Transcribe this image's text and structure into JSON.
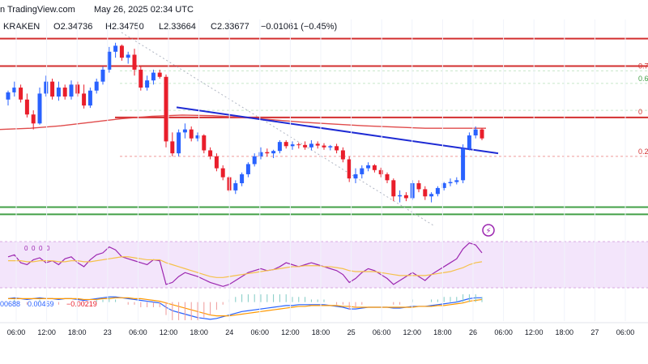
{
  "header": {
    "source": "n TradingView.com",
    "date": "May 26, 2025 02:34 UTC"
  },
  "ohlc": {
    "exchange": "KRAKEN",
    "open_label": "O",
    "open": "2.34736",
    "high_label": "H",
    "high": "2.34750",
    "low_label": "L",
    "low": "2.33664",
    "close_label": "C",
    "close": "2.33677",
    "change": "−0.01061 (−0.45%)"
  },
  "fib_labels": [
    "0.7",
    "0.6",
    "0",
    "0.2"
  ],
  "rsi_values_text": [
    "0",
    "0",
    "0",
    "0"
  ],
  "macd_values_text": [
    "00688",
    "0.00469",
    "−0.00219"
  ],
  "colors": {
    "up": "#2962ff",
    "down": "#e91e2b",
    "resistance": "#d32f2f",
    "support": "#43a047",
    "trend": "#1e2bd4",
    "ma": "#e04b4b",
    "rsi": "#9c27b0",
    "rsi_ma": "#f5c14a",
    "rsi_band": "#f3e5fb",
    "macd": "#2962ff",
    "signal": "#ff9800"
  },
  "chart_data": [
    {
      "type": "candlestick",
      "title": "",
      "x_ticks": [
        "06:00",
        "12:00",
        "18:00",
        "23",
        "06:00",
        "12:00",
        "18:00",
        "24",
        "06:00",
        "12:00",
        "18:00",
        "25",
        "06:00",
        "12:00",
        "18:00",
        "26",
        "06:00",
        "12:00",
        "18:00",
        "27",
        "06:00"
      ],
      "candles": [
        [
          2.28,
          2.295,
          2.27,
          2.292
        ],
        [
          2.292,
          2.31,
          2.285,
          2.3
        ],
        [
          2.3,
          2.305,
          2.275,
          2.28
        ],
        [
          2.28,
          2.29,
          2.25,
          2.255
        ],
        [
          2.255,
          2.262,
          2.23,
          2.24
        ],
        [
          2.24,
          2.3,
          2.238,
          2.29
        ],
        [
          2.29,
          2.32,
          2.285,
          2.31
        ],
        [
          2.31,
          2.315,
          2.28,
          2.285
        ],
        [
          2.285,
          2.31,
          2.278,
          2.3
        ],
        [
          2.3,
          2.305,
          2.28,
          2.285
        ],
        [
          2.285,
          2.312,
          2.28,
          2.305
        ],
        [
          2.305,
          2.31,
          2.285,
          2.29
        ],
        [
          2.29,
          2.305,
          2.265,
          2.27
        ],
        [
          2.27,
          2.3,
          2.266,
          2.295
        ],
        [
          2.295,
          2.315,
          2.29,
          2.31
        ],
        [
          2.31,
          2.335,
          2.305,
          2.33
        ],
        [
          2.33,
          2.368,
          2.325,
          2.36
        ],
        [
          2.36,
          2.375,
          2.35,
          2.37
        ],
        [
          2.37,
          2.372,
          2.345,
          2.35
        ],
        [
          2.35,
          2.36,
          2.34,
          2.355
        ],
        [
          2.355,
          2.365,
          2.32,
          2.33
        ],
        [
          2.33,
          2.335,
          2.295,
          2.3
        ],
        [
          2.3,
          2.32,
          2.295,
          2.312
        ],
        [
          2.312,
          2.33,
          2.305,
          2.325
        ],
        [
          2.325,
          2.33,
          2.315,
          2.318
        ],
        [
          2.318,
          2.322,
          2.2,
          2.21
        ],
        [
          2.21,
          2.225,
          2.185,
          2.19
        ],
        [
          2.19,
          2.23,
          2.185,
          2.225
        ],
        [
          2.225,
          2.24,
          2.215,
          2.23
        ],
        [
          2.23,
          2.235,
          2.21,
          2.215
        ],
        [
          2.215,
          2.225,
          2.21,
          2.22
        ],
        [
          2.22,
          2.222,
          2.19,
          2.195
        ],
        [
          2.195,
          2.2,
          2.18,
          2.185
        ],
        [
          2.185,
          2.19,
          2.16,
          2.165
        ],
        [
          2.165,
          2.17,
          2.145,
          2.15
        ],
        [
          2.15,
          2.152,
          2.125,
          2.128
        ],
        [
          2.128,
          2.145,
          2.122,
          2.14
        ],
        [
          2.14,
          2.158,
          2.135,
          2.155
        ],
        [
          2.155,
          2.175,
          2.15,
          2.172
        ],
        [
          2.172,
          2.19,
          2.168,
          2.185
        ],
        [
          2.185,
          2.2,
          2.18,
          2.192
        ],
        [
          2.192,
          2.198,
          2.185,
          2.19
        ],
        [
          2.19,
          2.196,
          2.182,
          2.194
        ],
        [
          2.194,
          2.212,
          2.19,
          2.209
        ],
        [
          2.209,
          2.212,
          2.198,
          2.202
        ],
        [
          2.202,
          2.21,
          2.196,
          2.205
        ],
        [
          2.205,
          2.208,
          2.198,
          2.204
        ],
        [
          2.204,
          2.21,
          2.196,
          2.2
        ],
        [
          2.2,
          2.212,
          2.195,
          2.206
        ],
        [
          2.206,
          2.21,
          2.198,
          2.203
        ],
        [
          2.203,
          2.207,
          2.196,
          2.2
        ],
        [
          2.2,
          2.204,
          2.195,
          2.202
        ],
        [
          2.202,
          2.206,
          2.19,
          2.195
        ],
        [
          2.195,
          2.2,
          2.175,
          2.18
        ],
        [
          2.18,
          2.185,
          2.142,
          2.148
        ],
        [
          2.148,
          2.165,
          2.14,
          2.155
        ],
        [
          2.155,
          2.17,
          2.148,
          2.165
        ],
        [
          2.165,
          2.175,
          2.16,
          2.17
        ],
        [
          2.17,
          2.172,
          2.158,
          2.162
        ],
        [
          2.162,
          2.166,
          2.15,
          2.155
        ],
        [
          2.155,
          2.158,
          2.14,
          2.145
        ],
        [
          2.145,
          2.148,
          2.11,
          2.118
        ],
        [
          2.118,
          2.128,
          2.108,
          2.12
        ],
        [
          2.12,
          2.125,
          2.11,
          2.115
        ],
        [
          2.115,
          2.145,
          2.112,
          2.14
        ],
        [
          2.14,
          2.145,
          2.125,
          2.13
        ],
        [
          2.13,
          2.135,
          2.112,
          2.118
        ],
        [
          2.118,
          2.125,
          2.108,
          2.122
        ],
        [
          2.122,
          2.135,
          2.118,
          2.132
        ],
        [
          2.132,
          2.142,
          2.128,
          2.14
        ],
        [
          2.14,
          2.148,
          2.135,
          2.142
        ],
        [
          2.142,
          2.15,
          2.138,
          2.145
        ],
        [
          2.145,
          2.205,
          2.14,
          2.198
        ],
        [
          2.198,
          2.225,
          2.195,
          2.22
        ],
        [
          2.22,
          2.235,
          2.215,
          2.23
        ],
        [
          2.23,
          2.232,
          2.212,
          2.215
        ]
      ],
      "moving_average": [
        2.23,
        2.232,
        2.236,
        2.242,
        2.248,
        2.252,
        2.254,
        2.253,
        2.25,
        2.246,
        2.242,
        2.239,
        2.236,
        2.234,
        2.232,
        2.232,
        2.232
      ],
      "resistance_lines": [
        2.382,
        2.336,
        2.25
      ],
      "support_lines": [
        2.1,
        2.088
      ],
      "fib_levels": [
        2.328,
        2.307,
        2.262,
        2.185
      ],
      "trendline": [
        [
          2.267,
          2.19
        ]
      ],
      "ylim": [
        2.06,
        2.395
      ]
    },
    {
      "type": "line",
      "title": "",
      "series": [
        {
          "values": [
            58,
            60,
            52,
            50,
            55,
            57,
            52,
            54,
            50,
            56,
            58,
            52,
            48,
            55,
            60,
            62,
            68,
            65,
            58,
            56,
            54,
            52,
            50,
            55,
            54,
            30,
            32,
            38,
            42,
            40,
            38,
            35,
            32,
            30,
            28,
            30,
            34,
            38,
            42,
            44,
            46,
            44,
            45,
            48,
            52,
            50,
            48,
            50,
            52,
            50,
            48,
            46,
            44,
            40,
            32,
            36,
            42,
            46,
            44,
            40,
            36,
            30,
            34,
            38,
            42,
            38,
            34,
            40,
            44,
            48,
            52,
            56,
            66,
            72,
            70,
            62
          ]
        },
        {
          "values": [
            54,
            54,
            54,
            53,
            53,
            54,
            54,
            54,
            53,
            53,
            54,
            54,
            53,
            53,
            54,
            55,
            56,
            57,
            58,
            58,
            57,
            56,
            55,
            55,
            55,
            52,
            50,
            48,
            46,
            44,
            42,
            40,
            38,
            37,
            37,
            38,
            39,
            40,
            41,
            42,
            43,
            44,
            45,
            46,
            47,
            48,
            48,
            49,
            49,
            49,
            48,
            48,
            47,
            46,
            44,
            43,
            43,
            43,
            43,
            42,
            41,
            40,
            39,
            39,
            39,
            39,
            39,
            40,
            41,
            42,
            43,
            45,
            47,
            50,
            52,
            53
          ]
        }
      ],
      "ylim": [
        20,
        80
      ]
    },
    {
      "type": "line",
      "title": "",
      "series": [
        {
          "values": [
            0.004,
            0.005,
            0.004,
            0.003,
            0.004,
            0.005,
            0.004,
            0.004,
            0.003,
            0.004,
            0.004,
            0.003,
            0.002,
            0.003,
            0.004,
            0.005,
            0.006,
            0.006,
            0.005,
            0.004,
            0.003,
            0.002,
            0.001,
            0.0,
            -0.001,
            -0.006,
            -0.01,
            -0.012,
            -0.014,
            -0.016,
            -0.018,
            -0.019,
            -0.02,
            -0.019,
            -0.017,
            -0.015,
            -0.013,
            -0.011,
            -0.01,
            -0.009,
            -0.008,
            -0.007,
            -0.006,
            -0.005,
            -0.004,
            -0.004,
            -0.003,
            -0.003,
            -0.003,
            -0.003,
            -0.003,
            -0.004,
            -0.005,
            -0.006,
            -0.008,
            -0.008,
            -0.007,
            -0.006,
            -0.006,
            -0.006,
            -0.006,
            -0.007,
            -0.007,
            -0.006,
            -0.005,
            -0.005,
            -0.005,
            -0.004,
            -0.003,
            -0.002,
            -0.001,
            0.0,
            0.002,
            0.004,
            0.005,
            0.005
          ]
        },
        {
          "values": [
            0.004,
            0.004,
            0.004,
            0.004,
            0.004,
            0.004,
            0.004,
            0.004,
            0.004,
            0.004,
            0.004,
            0.004,
            0.003,
            0.003,
            0.003,
            0.004,
            0.004,
            0.005,
            0.005,
            0.005,
            0.004,
            0.004,
            0.003,
            0.002,
            0.001,
            -0.001,
            -0.003,
            -0.005,
            -0.007,
            -0.009,
            -0.011,
            -0.013,
            -0.015,
            -0.016,
            -0.016,
            -0.016,
            -0.015,
            -0.014,
            -0.013,
            -0.012,
            -0.011,
            -0.01,
            -0.009,
            -0.008,
            -0.007,
            -0.006,
            -0.005,
            -0.005,
            -0.004,
            -0.004,
            -0.004,
            -0.004,
            -0.004,
            -0.005,
            -0.005,
            -0.006,
            -0.006,
            -0.006,
            -0.006,
            -0.006,
            -0.006,
            -0.006,
            -0.006,
            -0.006,
            -0.006,
            -0.005,
            -0.005,
            -0.005,
            -0.004,
            -0.004,
            -0.003,
            -0.002,
            -0.001,
            0.001,
            0.002,
            0.003
          ]
        }
      ],
      "ylim": [
        -0.022,
        0.01
      ]
    }
  ]
}
